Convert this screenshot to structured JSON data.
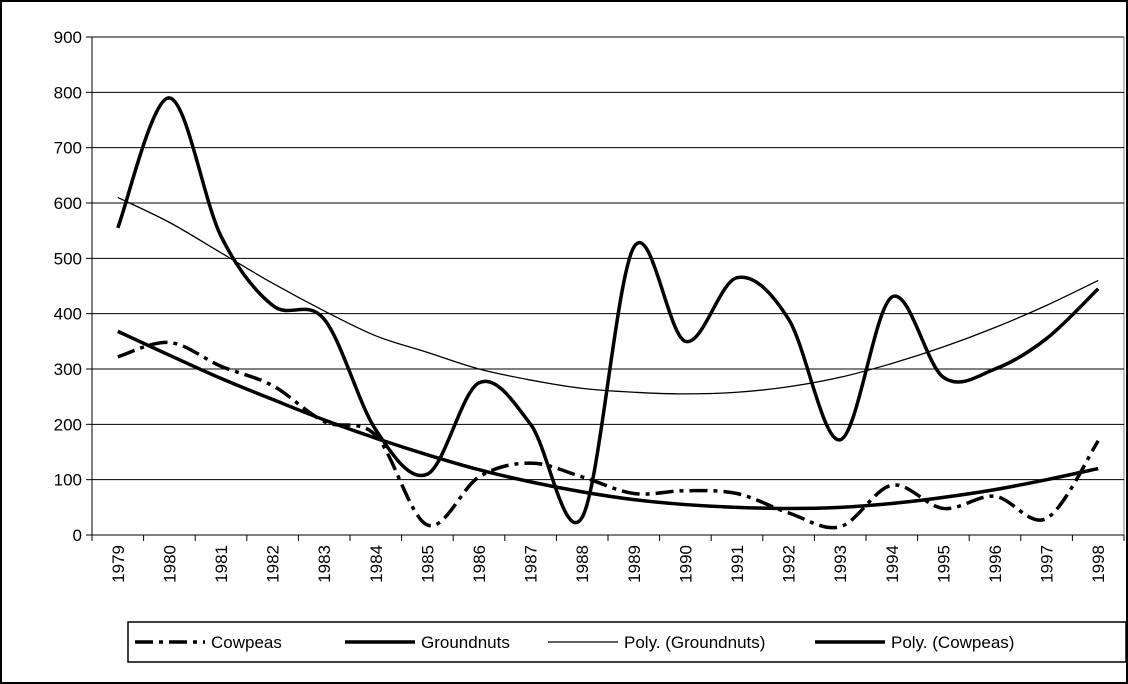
{
  "chart_data": {
    "type": "line",
    "categories": [
      "1979",
      "1980",
      "1981",
      "1982",
      "1983",
      "1984",
      "1985",
      "1986",
      "1987",
      "1988",
      "1989",
      "1990",
      "1991",
      "1992",
      "1993",
      "1994",
      "1995",
      "1996",
      "1997",
      "1998"
    ],
    "series": [
      {
        "name": "Cowpeas",
        "color": "#000000",
        "line_style": "dash-dot",
        "line_width": "thick",
        "values": [
          322,
          348,
          305,
          270,
          205,
          180,
          18,
          105,
          130,
          105,
          75,
          80,
          75,
          40,
          15,
          90,
          48,
          70,
          30,
          170
        ]
      },
      {
        "name": "Groundnuts",
        "color": "#000000",
        "line_style": "solid",
        "line_width": "thick",
        "values": [
          555,
          790,
          540,
          415,
          390,
          190,
          110,
          275,
          200,
          32,
          520,
          350,
          465,
          390,
          172,
          430,
          285,
          300,
          355,
          445
        ]
      },
      {
        "name": "Poly. (Groundnuts)",
        "color": "#000000",
        "line_style": "solid",
        "line_width": "thin",
        "values": [
          610,
          565,
          510,
          455,
          405,
          360,
          330,
          300,
          280,
          265,
          258,
          255,
          258,
          268,
          285,
          310,
          340,
          375,
          415,
          460
        ]
      },
      {
        "name": "Poly. (Cowpeas)",
        "color": "#000000",
        "line_style": "solid",
        "line_width": "thick",
        "values": [
          368,
          325,
          283,
          245,
          208,
          175,
          145,
          118,
          96,
          78,
          64,
          55,
          50,
          48,
          50,
          57,
          68,
          82,
          100,
          120
        ]
      }
    ],
    "ylim": [
      0,
      900
    ],
    "yticks": [
      0,
      100,
      200,
      300,
      400,
      500,
      600,
      700,
      800,
      900
    ],
    "grid": true,
    "legend": "bottom"
  }
}
